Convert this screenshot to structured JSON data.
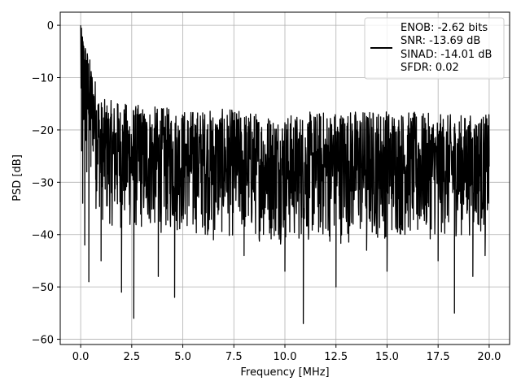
{
  "chart_data": {
    "type": "line",
    "title": "",
    "xlabel": "Frequency [MHz]",
    "ylabel": "PSD [dB]",
    "xlim": [
      -1.0,
      21.0
    ],
    "ylim": [
      -61.0,
      2.5
    ],
    "xticks": [
      0.0,
      2.5,
      5.0,
      7.5,
      10.0,
      12.5,
      15.0,
      17.5,
      20.0
    ],
    "xtick_labels": [
      "0.0",
      "2.5",
      "5.0",
      "7.5",
      "10.0",
      "12.5",
      "15.0",
      "17.5",
      "20.0"
    ],
    "yticks": [
      0,
      -10,
      -20,
      -30,
      -40,
      -50,
      -60
    ],
    "ytick_labels": [
      "0",
      "−10",
      "−20",
      "−30",
      "−40",
      "−50",
      "−60"
    ],
    "grid": true,
    "legend": {
      "placement": "top-right",
      "entries": [
        "ENOB: -2.62 bits",
        "SNR: -13.69 dB",
        "SINAD: -14.01 dB",
        "SFDR: 0.02"
      ]
    },
    "series": [
      {
        "color": "#000000",
        "x": [
          0.0,
          0.02,
          0.05,
          0.1,
          0.15,
          0.2,
          0.25,
          0.3,
          0.35,
          0.4,
          0.45,
          0.5,
          0.6,
          0.75,
          0.9,
          1.0,
          1.2,
          1.5,
          1.8,
          2.0,
          2.3,
          2.6,
          2.9,
          3.2,
          3.5,
          3.8,
          4.2,
          4.6,
          5.0,
          5.5,
          6.0,
          6.5,
          7.0,
          7.5,
          8.0,
          8.5,
          9.0,
          9.5,
          10.0,
          10.5,
          10.9,
          11.5,
          12.0,
          12.5,
          13.0,
          13.5,
          14.0,
          14.5,
          15.0,
          15.5,
          16.0,
          16.5,
          17.0,
          17.5,
          18.0,
          18.3,
          18.6,
          18.9,
          19.2,
          19.5,
          19.8,
          20.0
        ],
        "y": [
          0.0,
          -12,
          -24,
          -34,
          -18,
          -42,
          -22,
          -28,
          -16,
          -49,
          -20,
          -27,
          -14,
          -35,
          -19,
          -45,
          -24,
          -32,
          -15,
          -51,
          -26,
          -56,
          -17,
          -33,
          -22,
          -48,
          -29,
          -52,
          -21,
          -38,
          -18,
          -41,
          -30,
          -25,
          -44,
          -22,
          -36,
          -27,
          -47,
          -23,
          -57,
          -30,
          -24,
          -50,
          -32,
          -20,
          -43,
          -29,
          -47,
          -33,
          -21,
          -39,
          -28,
          -45,
          -26,
          -55,
          -34,
          -20,
          -48,
          -31,
          -44,
          -27
        ],
        "envelope": {
          "x": [
            0.0,
            1.0,
            2.5,
            5.0,
            7.5,
            10.0,
            12.5,
            15.0,
            17.5,
            20.0
          ],
          "upper": [
            0.0,
            -14,
            -15,
            -16,
            -16,
            -17,
            -16,
            -16,
            -17,
            -17
          ],
          "lower": [
            -10,
            -38,
            -40,
            -40,
            -41,
            -42,
            -42,
            -41,
            -41,
            -40
          ]
        }
      }
    ]
  }
}
